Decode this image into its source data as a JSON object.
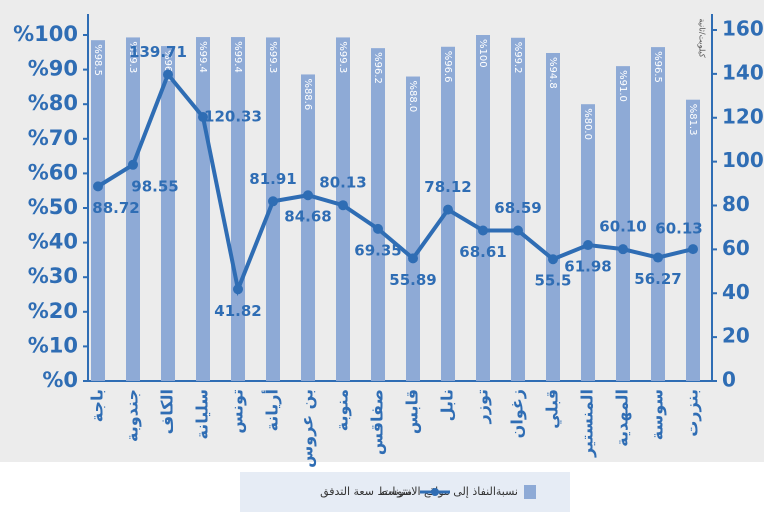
{
  "chart_data": {
    "type": "bar_line",
    "categories": [
      "باجة",
      "جندوبة",
      "الكاف",
      "سليانة",
      "تونس",
      "أريانة",
      "بن عروس",
      "منوبة",
      "صفاقس",
      "قابس",
      "نابل",
      "توزر",
      "زغوان",
      "قبلي",
      "المنستير",
      "المهدية",
      "سوسة",
      "بنزرت"
    ],
    "series": [
      {
        "name": "نسبةالنفاذ إلى مواقع الانترنات",
        "type": "bar",
        "color": "#8eaad6",
        "values": [
          98.5,
          99.3,
          96.8,
          99.4,
          99.4,
          99.3,
          88.6,
          99.3,
          96.2,
          88.0,
          96.6,
          100,
          99.2,
          94.8,
          80.0,
          91.0,
          96.5,
          81.3
        ],
        "value_labels": [
          "%98.5",
          "%99.3",
          "%96.8",
          "%99.4",
          "%99.4",
          "%99.3",
          "%88.6",
          "%99.3",
          "%96.2",
          "%88.0",
          "%96.6",
          "%100",
          "%99.2",
          "%94.8",
          "%80.0",
          "%91.0",
          "%96.5",
          "%81.3"
        ]
      },
      {
        "name": "متوسط سعة التدفق",
        "type": "line",
        "axis": "y2",
        "color": "#2f6db4",
        "values": [
          88.72,
          98.55,
          139.71,
          120.33,
          41.82,
          81.91,
          84.68,
          80.13,
          69.35,
          55.89,
          78.12,
          68.61,
          68.59,
          55.5,
          61.98,
          60.1,
          56.27,
          60.13
        ],
        "value_labels": [
          "88.72",
          "98.55",
          "139.71",
          "120.33",
          "41.82",
          "81.91",
          "84.68",
          "80.13",
          "69.35",
          "55.89",
          "78.12",
          "68.61",
          "68.59",
          "55.5",
          "61.98",
          "60.10",
          "56.27",
          "60.13"
        ]
      }
    ],
    "y2_label": "كيلوبت/ثانية",
    "ylim": [
      0,
      100
    ],
    "yticks": [
      {
        "value": 0,
        "label": "%0"
      },
      {
        "value": 10,
        "label": "%10"
      },
      {
        "value": 20,
        "label": "%20"
      },
      {
        "value": 30,
        "label": "%30"
      },
      {
        "value": 40,
        "label": "%40"
      },
      {
        "value": 50,
        "label": "%50"
      },
      {
        "value": 60,
        "label": "%60"
      },
      {
        "value": 70,
        "label": "%70"
      },
      {
        "value": 80,
        "label": "%80"
      },
      {
        "value": 90,
        "label": "%90"
      },
      {
        "value": 100,
        "label": "%100"
      }
    ],
    "y2lim": [
      0,
      160
    ],
    "y2ticks": [
      0,
      20,
      40,
      60,
      80,
      100,
      120,
      140,
      160
    ]
  }
}
